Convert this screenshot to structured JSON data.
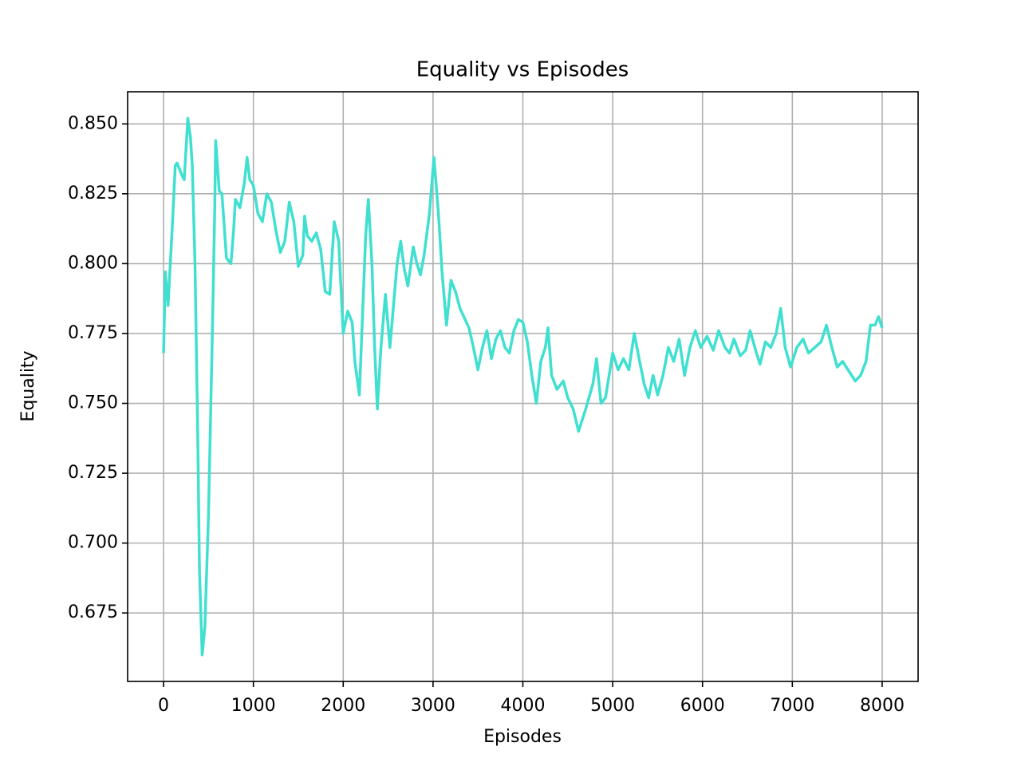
{
  "chart_data": {
    "type": "line",
    "title": "Equality vs Episodes",
    "xlabel": "Episodes",
    "ylabel": "Equality",
    "color": "#40e0d0",
    "grid": true,
    "xlim": [
      -400,
      8400
    ],
    "ylim": [
      0.6505,
      0.8615
    ],
    "xticks": [
      0,
      1000,
      2000,
      3000,
      4000,
      5000,
      6000,
      7000,
      8000
    ],
    "yticks": [
      0.675,
      {
        "value": 0.7,
        "label": "0.700"
      },
      0.725,
      {
        "value": 0.75,
        "label": "0.750"
      },
      0.775,
      {
        "value": 0.8,
        "label": "0.800"
      },
      0.825,
      {
        "value": 0.85,
        "label": "0.850"
      }
    ],
    "x": [
      0,
      20,
      50,
      100,
      130,
      150,
      200,
      230,
      270,
      300,
      320,
      350,
      380,
      400,
      430,
      460,
      500,
      540,
      570,
      580,
      620,
      650,
      700,
      750,
      780,
      800,
      850,
      900,
      930,
      960,
      1000,
      1050,
      1100,
      1150,
      1200,
      1250,
      1300,
      1350,
      1400,
      1450,
      1500,
      1550,
      1570,
      1600,
      1650,
      1700,
      1750,
      1800,
      1850,
      1900,
      1950,
      2000,
      2050,
      2100,
      2130,
      2180,
      2250,
      2280,
      2320,
      2350,
      2380,
      2420,
      2470,
      2520,
      2560,
      2600,
      2640,
      2680,
      2720,
      2780,
      2820,
      2860,
      2900,
      2960,
      3010,
      3060,
      3100,
      3150,
      3200,
      3250,
      3300,
      3400,
      3450,
      3500,
      3550,
      3600,
      3650,
      3700,
      3750,
      3800,
      3850,
      3900,
      3950,
      4000,
      4050,
      4100,
      4150,
      4200,
      4250,
      4280,
      4320,
      4380,
      4450,
      4500,
      4560,
      4620,
      4700,
      4780,
      4820,
      4870,
      4920,
      5000,
      5060,
      5120,
      5180,
      5240,
      5300,
      5350,
      5400,
      5450,
      5500,
      5560,
      5620,
      5680,
      5740,
      5800,
      5860,
      5920,
      5980,
      6050,
      6120,
      6180,
      6250,
      6300,
      6350,
      6420,
      6480,
      6530,
      6600,
      6640,
      6700,
      6760,
      6820,
      6870,
      6920,
      6980,
      7050,
      7120,
      7180,
      7250,
      7320,
      7380,
      7440,
      7500,
      7560,
      7620,
      7700,
      7760,
      7820,
      7870,
      7920,
      7960,
      8000
    ],
    "values": [
      0.768,
      0.797,
      0.785,
      0.815,
      0.835,
      0.836,
      0.832,
      0.83,
      0.852,
      0.845,
      0.835,
      0.8,
      0.74,
      0.69,
      0.66,
      0.67,
      0.71,
      0.77,
      0.82,
      0.844,
      0.826,
      0.825,
      0.802,
      0.8,
      0.812,
      0.823,
      0.82,
      0.829,
      0.838,
      0.83,
      0.828,
      0.818,
      0.815,
      0.825,
      0.822,
      0.812,
      0.804,
      0.808,
      0.822,
      0.815,
      0.799,
      0.803,
      0.817,
      0.81,
      0.808,
      0.811,
      0.805,
      0.79,
      0.789,
      0.815,
      0.808,
      0.775,
      0.783,
      0.779,
      0.765,
      0.753,
      0.81,
      0.823,
      0.8,
      0.77,
      0.748,
      0.77,
      0.789,
      0.77,
      0.785,
      0.8,
      0.808,
      0.798,
      0.792,
      0.806,
      0.8,
      0.796,
      0.803,
      0.818,
      0.838,
      0.818,
      0.797,
      0.778,
      0.794,
      0.79,
      0.784,
      0.777,
      0.77,
      0.762,
      0.77,
      0.776,
      0.766,
      0.773,
      0.776,
      0.77,
      0.768,
      0.776,
      0.78,
      0.779,
      0.772,
      0.76,
      0.75,
      0.765,
      0.77,
      0.777,
      0.76,
      0.755,
      0.758,
      0.752,
      0.748,
      0.74,
      0.748,
      0.757,
      0.766,
      0.75,
      0.752,
      0.768,
      0.762,
      0.766,
      0.762,
      0.775,
      0.765,
      0.757,
      0.752,
      0.76,
      0.753,
      0.76,
      0.77,
      0.765,
      0.773,
      0.76,
      0.77,
      0.776,
      0.77,
      0.774,
      0.769,
      0.776,
      0.77,
      0.768,
      0.773,
      0.767,
      0.769,
      0.776,
      0.768,
      0.764,
      0.772,
      0.77,
      0.775,
      0.784,
      0.77,
      0.763,
      0.77,
      0.773,
      0.768,
      0.77,
      0.772,
      0.778,
      0.77,
      0.763,
      0.765,
      0.762,
      0.758,
      0.76,
      0.765,
      0.778,
      0.778,
      0.781,
      0.777
    ]
  }
}
